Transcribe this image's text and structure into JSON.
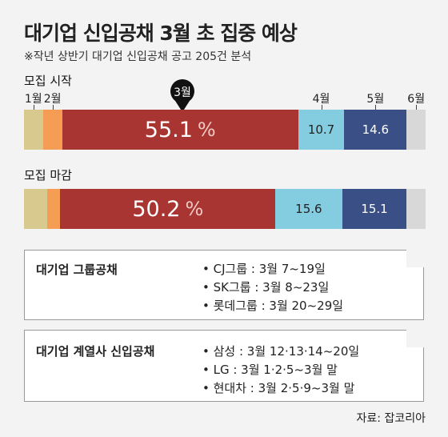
{
  "title": "대기업 신입공채 3월 초 집중 예상",
  "subtitle": "※작년 상반기 대기업 신입공채 공고 205건 분석",
  "chart_data": {
    "type": "bar",
    "orientation": "horizontal-stacked",
    "categories": [
      "1월",
      "2월",
      "3월",
      "4월",
      "5월",
      "6월"
    ],
    "highlight_category": "3월",
    "bars": [
      {
        "name": "모집 시작",
        "values": [
          4.4,
          4.5,
          55.1,
          10.7,
          14.6,
          4.4
        ],
        "labels": [
          "",
          "",
          "55.1",
          "10.7",
          "14.6",
          ""
        ]
      },
      {
        "name": "모집 마감",
        "values": [
          5.4,
          3.1,
          50.2,
          15.6,
          15.1,
          4.4
        ],
        "labels": [
          "",
          "",
          "50.2",
          "15.6",
          "15.1",
          ""
        ]
      }
    ],
    "unit": "%",
    "colors": [
      "#d8c98f",
      "#f59d55",
      "#a83531",
      "#84cde0",
      "#3a4f86",
      "#d8d8d8"
    ]
  },
  "boxes": [
    {
      "title": "대기업 그룹공채",
      "items": [
        "• CJ그룹 : 3월 7~19일",
        "• SK그룹 : 3월 8~23일",
        "• 롯데그룹 : 3월 20~29일"
      ]
    },
    {
      "title": "대기업 계열사 신입공채",
      "items": [
        "• 삼성 : 3월 12·13·14~20일",
        "• LG : 3월 1·2·5~3월 말",
        "• 현대차 : 3월 2·5·9~3월 말"
      ]
    }
  ],
  "source": "자료: 잡코리아"
}
